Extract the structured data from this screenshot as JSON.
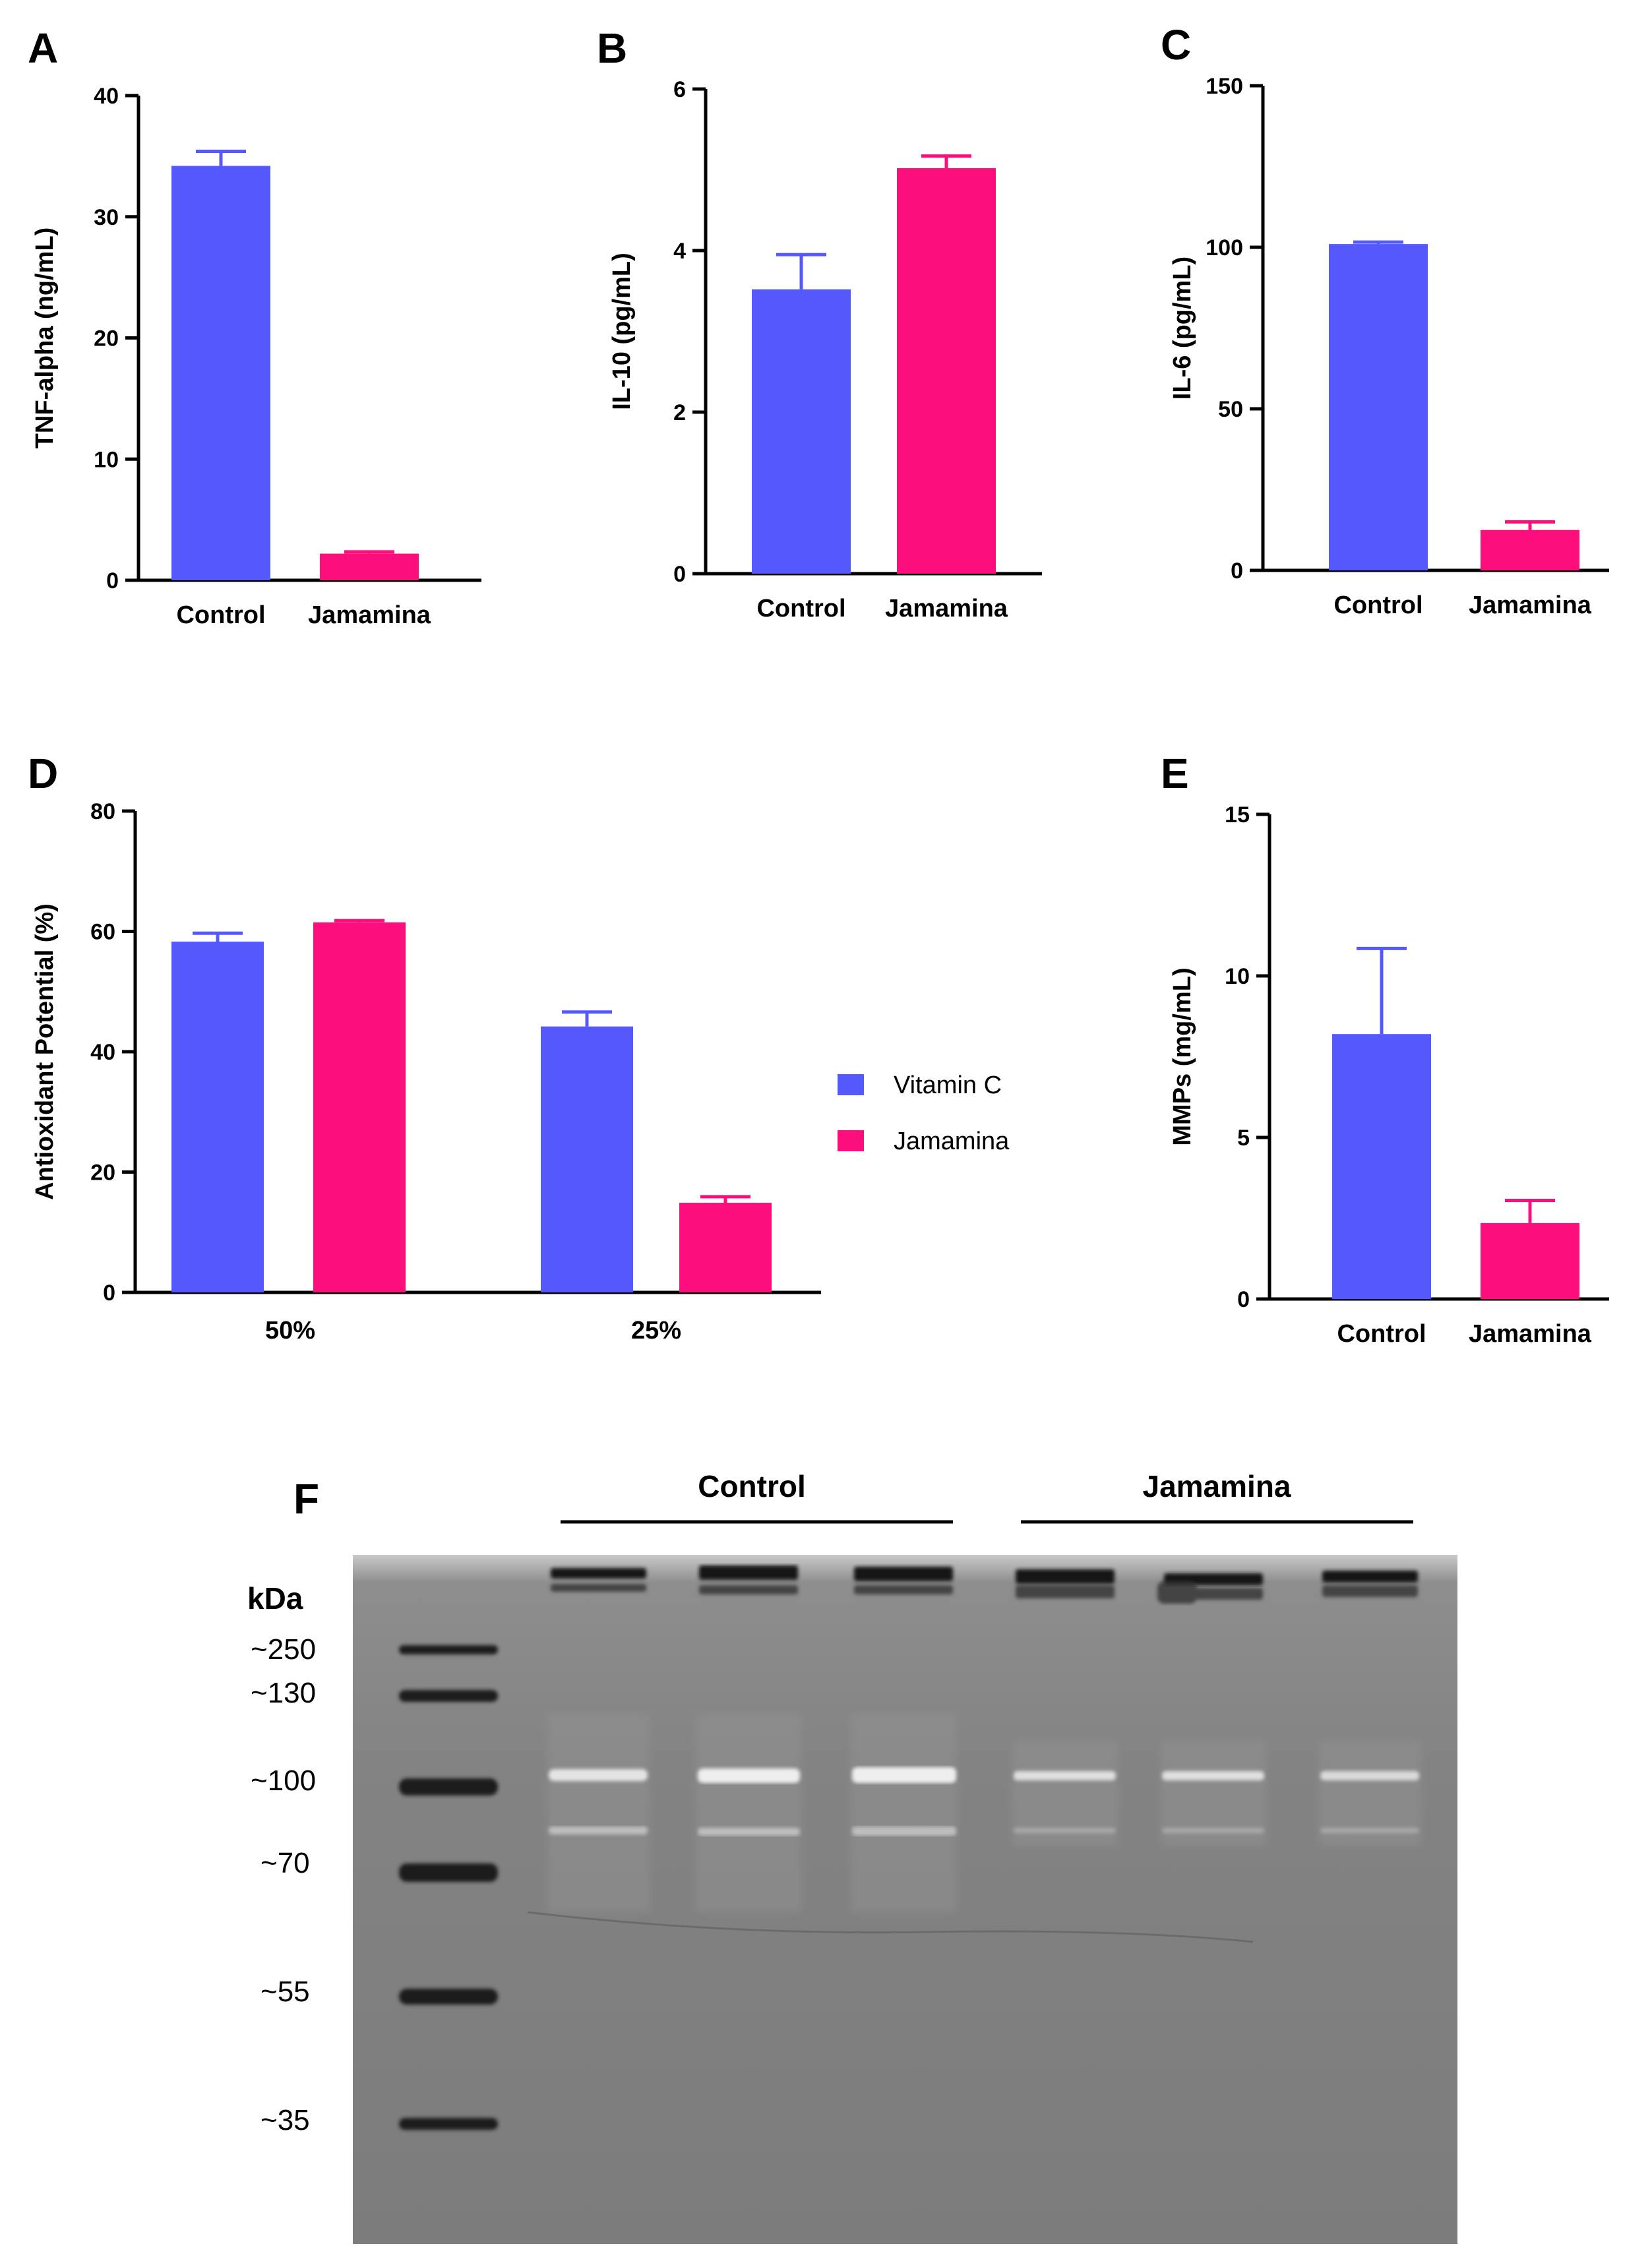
{
  "colors": {
    "control": "#5558fa",
    "jamamina": "#fc0e7d"
  },
  "panels": [
    {
      "letter": "A",
      "ylabel": "TNF-alpha (ng/mL)",
      "ylim": [
        0,
        40
      ],
      "yticks": [
        0,
        10,
        20,
        30,
        40
      ],
      "categories": [
        "Control",
        "Jamamina"
      ],
      "values": [
        34.2,
        2.2
      ],
      "errors": [
        1.2,
        0.15
      ]
    },
    {
      "letter": "B",
      "ylabel": "IL-10  (pg/mL)",
      "ylim": [
        0,
        6
      ],
      "yticks": [
        0,
        2,
        4,
        6
      ],
      "categories": [
        "Control",
        "Jamamina"
      ],
      "values": [
        3.52,
        5.02
      ],
      "errors": [
        0.43,
        0.15
      ]
    },
    {
      "letter": "C",
      "ylabel": "IL-6 (pg/mL)",
      "ylim": [
        0,
        150
      ],
      "yticks": [
        0,
        50,
        100,
        150
      ],
      "categories": [
        "Control",
        "Jamamina"
      ],
      "values": [
        101,
        12.5
      ],
      "errors": [
        0.6,
        2.5
      ]
    },
    {
      "letter": "D",
      "ylabel": "Antioxidant Potential (%)",
      "ylim": [
        0,
        80
      ],
      "yticks": [
        0,
        20,
        40,
        60,
        80
      ],
      "categories": [
        "50%",
        "25%"
      ],
      "series": [
        {
          "name": "Vitamin C",
          "values": [
            58.3,
            44.2
          ],
          "errors": [
            1.4,
            2.4
          ]
        },
        {
          "name": "Jamamina",
          "values": [
            61.5,
            14.9
          ],
          "errors": [
            0.3,
            1.0
          ]
        }
      ],
      "legend": [
        "Vitamin C",
        "Jamamina"
      ]
    },
    {
      "letter": "E",
      "ylabel": "MMPs (mg/mL)",
      "ylim": [
        0,
        15
      ],
      "yticks": [
        0,
        5,
        10,
        15
      ],
      "categories": [
        "Control",
        "Jamamina"
      ],
      "values": [
        8.2,
        2.35
      ],
      "errors": [
        2.65,
        0.7
      ]
    }
  ],
  "gel": {
    "letter": "F",
    "groups": [
      "Control",
      "Jamamina"
    ],
    "unit": "kDa",
    "markers": [
      "~250",
      "~130",
      "~100",
      "~70",
      "~55",
      "~35"
    ]
  }
}
